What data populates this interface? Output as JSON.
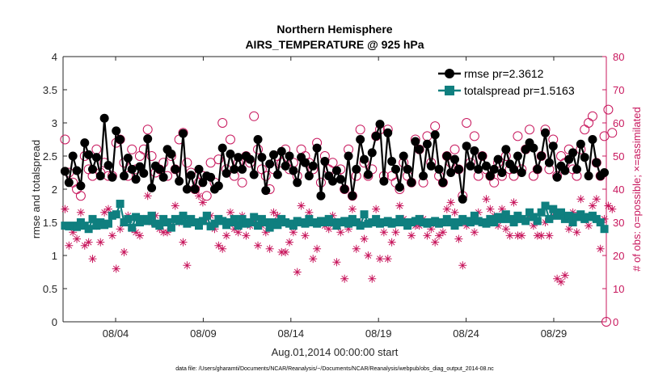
{
  "chart_data": {
    "type": "line",
    "title": "Northern Hemisphere",
    "subtitle": "AIRS_TEMPERATURE @ 925 hPa",
    "xlabel": "Aug.01,2014 00:00:00 start",
    "ylabel": "rmse and totalspread",
    "y2label": "# of obs: o=possible; ×=assimilated",
    "footnote": "data file: /Users/gharamti/Documents/NCAR/Reanalysis/~/Documents/NCAR/Reanalysis/webpub/obs_diag_output_2014-08.nc",
    "xlim": [
      1,
      32
    ],
    "ylim": [
      0,
      4
    ],
    "y2lim": [
      0,
      80
    ],
    "x_ticks": [
      {
        "value": 4,
        "label": "08/04"
      },
      {
        "value": 9,
        "label": "08/09"
      },
      {
        "value": 14,
        "label": "08/14"
      },
      {
        "value": 19,
        "label": "08/19"
      },
      {
        "value": 24,
        "label": "08/24"
      },
      {
        "value": 29,
        "label": "08/29"
      }
    ],
    "y_ticks": [
      "0",
      "0.5",
      "1",
      "1.5",
      "2",
      "2.5",
      "3",
      "3.5",
      "4"
    ],
    "y2_ticks": [
      "0",
      "10",
      "20",
      "30",
      "40",
      "50",
      "60",
      "70",
      "80"
    ],
    "legend_position": "top-right",
    "colors": {
      "rmse": "#000000",
      "spread": "#0f7f7f",
      "obs": "#c8175d"
    },
    "series": [
      {
        "name": "rmse pr=2.3612",
        "axis": "left",
        "marker": "filled-circle",
        "values": [
          2.27,
          2.1,
          2.5,
          2.28,
          2.05,
          2.7,
          2.52,
          2.3,
          2.48,
          2.2,
          3.07,
          2.36,
          2.18,
          2.88,
          2.75,
          2.2,
          2.47,
          2.3,
          2.15,
          2.34,
          2.24,
          2.76,
          2.02,
          2.35,
          2.3,
          2.18,
          2.6,
          2.53,
          2.3,
          2.12,
          2.84,
          2.0,
          2.21,
          2.0,
          2.3,
          2.1,
          2.2,
          2.18,
          2.0,
          2.05,
          2.62,
          2.24,
          2.53,
          2.3,
          2.48,
          2.3,
          2.5,
          2.45,
          2.22,
          2.75,
          2.48,
          1.98,
          2.38,
          2.52,
          2.22,
          2.57,
          2.35,
          2.5,
          2.28,
          2.1,
          2.48,
          2.4,
          2.2,
          2.35,
          2.62,
          1.9,
          2.42,
          2.2,
          2.12,
          2.28,
          2.15,
          2.0,
          2.5,
          1.9,
          2.3,
          2.75,
          2.45,
          2.22,
          2.55,
          2.8,
          2.98,
          2.12,
          2.85,
          2.42,
          2.3,
          2.03,
          2.5,
          2.3,
          2.1,
          2.72,
          2.6,
          2.2,
          2.68,
          2.35,
          2.82,
          2.3,
          2.1,
          2.5,
          2.25,
          2.45,
          2.3,
          1.85,
          2.65,
          2.35,
          2.58,
          2.3,
          2.5,
          2.35,
          2.2,
          2.3,
          2.45,
          2.25,
          2.6,
          2.38,
          2.3,
          2.5,
          2.25,
          2.6,
          2.7,
          2.62,
          2.3,
          2.5,
          2.85,
          2.4,
          2.65,
          2.18,
          2.35,
          2.28,
          2.45,
          2.55,
          2.3,
          2.68,
          2.48,
          2.2,
          2.75,
          2.4,
          2.2,
          2.25
        ]
      },
      {
        "name": "totalspread pr=1.5163",
        "axis": "left",
        "marker": "filled-square",
        "values": [
          1.45,
          1.44,
          1.45,
          1.43,
          1.5,
          1.45,
          1.4,
          1.55,
          1.45,
          1.5,
          1.46,
          1.48,
          1.6,
          1.62,
          1.78,
          1.5,
          1.55,
          1.42,
          1.58,
          1.5,
          1.55,
          1.52,
          1.6,
          1.48,
          1.45,
          1.55,
          1.5,
          1.42,
          1.55,
          1.52,
          1.6,
          1.48,
          1.55,
          1.5,
          1.45,
          1.52,
          1.6,
          1.44,
          1.48,
          1.55,
          1.52,
          1.46,
          1.5,
          1.55,
          1.45,
          1.55,
          1.48,
          1.5,
          1.58,
          1.45,
          1.55,
          1.5,
          1.42,
          1.5,
          1.46,
          1.55,
          1.5,
          1.48,
          1.45,
          1.52,
          1.5,
          1.48,
          1.55,
          1.5,
          1.48,
          1.52,
          1.5,
          1.55,
          1.5,
          1.45,
          1.5,
          1.52,
          1.48,
          1.55,
          1.5,
          1.45,
          1.62,
          1.48,
          1.5,
          1.55,
          1.48,
          1.5,
          1.52,
          1.48,
          1.5,
          1.55,
          1.5,
          1.45,
          1.5,
          1.52,
          1.55,
          1.5,
          1.48,
          1.5,
          1.52,
          1.48,
          1.5,
          1.55,
          1.5,
          1.45,
          1.5,
          1.55,
          1.52,
          1.5,
          1.6,
          1.52,
          1.5,
          1.48,
          1.55,
          1.5,
          1.58,
          1.55,
          1.62,
          1.55,
          1.5,
          1.6,
          1.55,
          1.52,
          1.65,
          1.58,
          1.52,
          1.65,
          1.75,
          1.55,
          1.7,
          1.6,
          1.65,
          1.55,
          1.6,
          1.5,
          1.58,
          1.62,
          1.55,
          1.58,
          1.6,
          1.55,
          1.5,
          1.4
        ]
      },
      {
        "name": "possible",
        "axis": "right",
        "marker": "open-circle",
        "values": [
          55,
          45,
          42,
          40,
          38,
          50,
          46,
          44,
          52,
          45,
          48,
          44,
          44,
          54,
          55,
          48,
          44,
          52,
          46,
          50,
          52,
          58,
          50,
          45,
          46,
          48,
          44,
          50,
          46,
          55,
          57,
          48,
          45,
          40,
          42,
          44,
          38,
          48,
          42,
          49,
          60,
          46,
          55,
          44,
          48,
          42,
          50,
          48,
          62,
          52,
          46,
          44,
          40,
          46,
          50,
          48,
          52,
          46,
          48,
          44,
          52,
          50,
          48,
          46,
          54,
          42,
          50,
          46,
          48,
          44,
          46,
          40,
          52,
          38,
          44,
          58,
          48,
          44,
          46,
          56,
          58,
          44,
          58,
          44,
          42,
          40,
          48,
          44,
          42,
          55,
          52,
          42,
          56,
          48,
          59,
          44,
          42,
          50,
          48,
          52,
          46,
          38,
          60,
          48,
          56,
          44,
          50,
          46,
          44,
          42,
          48,
          44,
          50,
          46,
          44,
          56,
          46,
          52,
          58,
          44,
          46,
          50,
          58,
          46,
          55,
          44,
          50,
          48,
          52,
          46,
          44,
          52,
          58,
          60,
          62,
          48,
          44,
          56,
          64,
          57
        ]
      },
      {
        "name": "assimilated",
        "axis": "right",
        "marker": "asterisk",
        "values": [
          34,
          23,
          27,
          25,
          33,
          23,
          24,
          19,
          29,
          24,
          33,
          34,
          26,
          16,
          28,
          21,
          32,
          28,
          27,
          26,
          31,
          38,
          30,
          32,
          28,
          27,
          27,
          29,
          35,
          30,
          24,
          17,
          30,
          30,
          38,
          36,
          31,
          32,
          28,
          23,
          22,
          26,
          33,
          28,
          27,
          32,
          26,
          29,
          30,
          23,
          29,
          27,
          22,
          33,
          32,
          21,
          21,
          24,
          27,
          15,
          35,
          26,
          33,
          19,
          22,
          30,
          29,
          28,
          32,
          18,
          27,
          13,
          28,
          34,
          22,
          30,
          25,
          20,
          13,
          34,
          19,
          27,
          19,
          24,
          27,
          35,
          31,
          30,
          26,
          29,
          29,
          31,
          26,
          28,
          24,
          26,
          27,
          34,
          36,
          33,
          25,
          17,
          29,
          30,
          27,
          33,
          30,
          37,
          34,
          32,
          29,
          34,
          28,
          26,
          36,
          26,
          26,
          31,
          32,
          29,
          26,
          26,
          30,
          26,
          32,
          13,
          12,
          14,
          28,
          33,
          27,
          37,
          31,
          29,
          35,
          37,
          22,
          31,
          35,
          34
        ]
      }
    ]
  }
}
